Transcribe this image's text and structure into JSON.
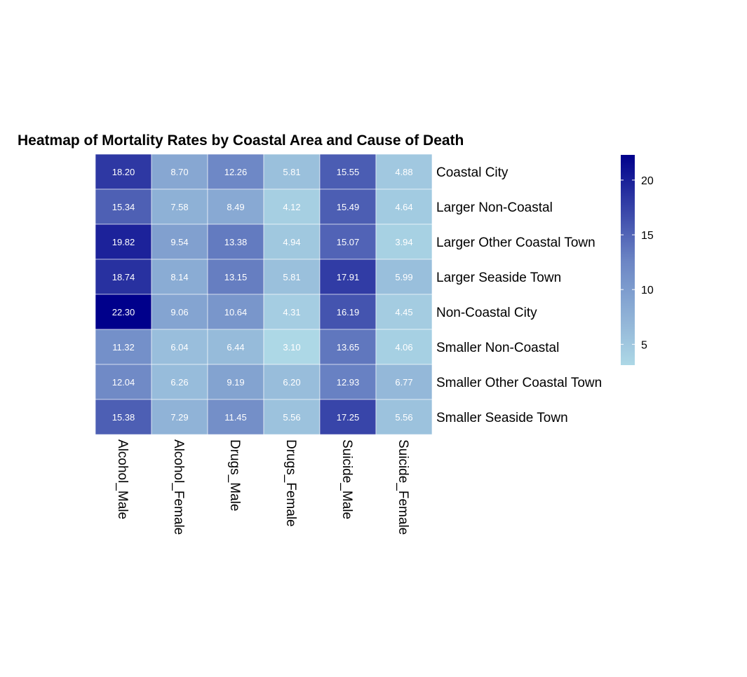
{
  "chart_data": {
    "type": "heatmap",
    "title": "Heatmap of Mortality Rates by Coastal Area and Cause of Death",
    "columns": [
      "Alcohol_Male",
      "Alcohol_Female",
      "Drugs_Male",
      "Drugs_Female",
      "Suicide_Male",
      "Suicide_Female"
    ],
    "rows": [
      "Coastal City",
      "Larger Non-Coastal",
      "Larger Other Coastal Town",
      "Larger Seaside Town",
      "Non-Coastal City",
      "Smaller Non-Coastal",
      "Smaller Other Coastal Town",
      "Smaller Seaside Town"
    ],
    "values": [
      [
        18.2,
        8.7,
        12.26,
        5.81,
        15.55,
        4.88
      ],
      [
        15.34,
        7.58,
        8.49,
        4.12,
        15.49,
        4.64
      ],
      [
        19.82,
        9.54,
        13.38,
        4.94,
        15.07,
        3.94
      ],
      [
        18.74,
        8.14,
        13.15,
        5.81,
        17.91,
        5.99
      ],
      [
        22.3,
        9.06,
        10.64,
        4.31,
        16.19,
        4.45
      ],
      [
        11.32,
        6.04,
        6.44,
        3.1,
        13.65,
        4.06
      ],
      [
        12.04,
        6.26,
        9.19,
        6.2,
        12.93,
        6.77
      ],
      [
        15.38,
        7.29,
        11.45,
        5.56,
        17.25,
        5.56
      ]
    ],
    "color_scale": {
      "low_color": "#add8e6",
      "mid_color": "#6b84c4",
      "high_color": "#00008b",
      "range": [
        3.1,
        22.3
      ]
    },
    "legend": {
      "ticks": [
        5,
        10,
        15,
        20
      ],
      "placement": "right"
    }
  }
}
